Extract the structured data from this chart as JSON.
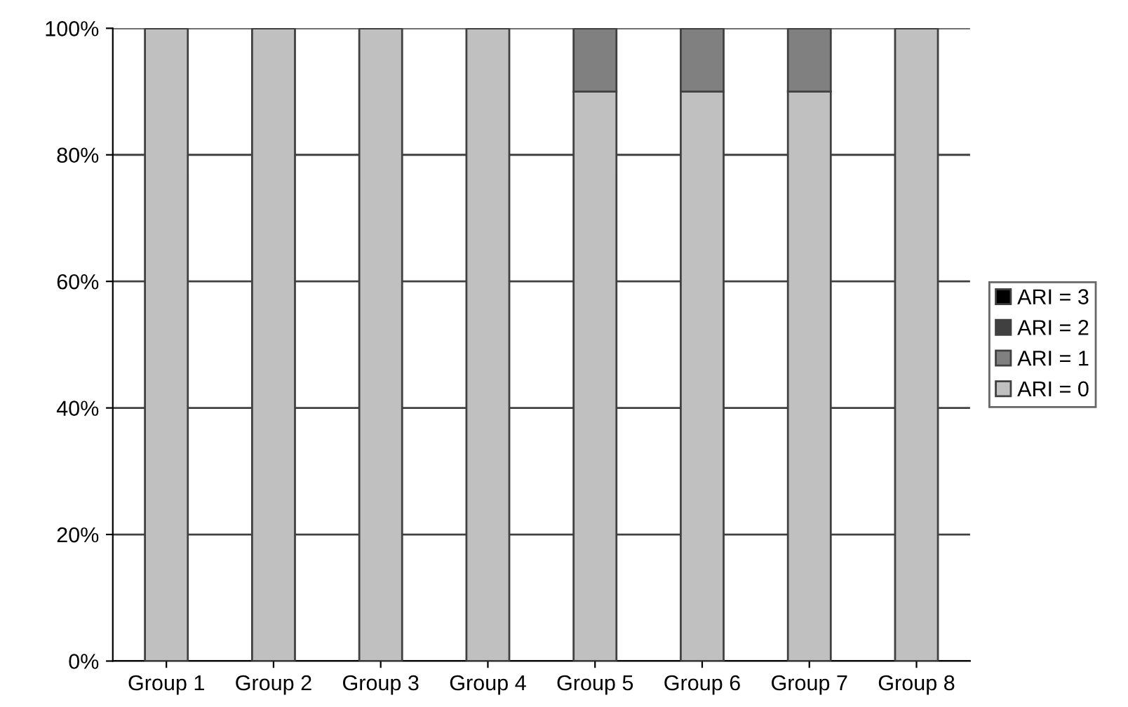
{
  "chart_data": {
    "type": "bar",
    "stacked": true,
    "categories": [
      "Group 1",
      "Group 2",
      "Group 3",
      "Group 4",
      "Group 5",
      "Group 6",
      "Group 7",
      "Group 8"
    ],
    "series": [
      {
        "name": "ARI = 0",
        "color": "#c0c0c0",
        "values": [
          100,
          100,
          100,
          100,
          90,
          90,
          90,
          100
        ]
      },
      {
        "name": "ARI = 1",
        "color": "#808080",
        "values": [
          0,
          0,
          0,
          0,
          10,
          10,
          10,
          0
        ]
      },
      {
        "name": "ARI = 2",
        "color": "#404040",
        "values": [
          0,
          0,
          0,
          0,
          0,
          0,
          0,
          0
        ]
      },
      {
        "name": "ARI = 3",
        "color": "#000000",
        "values": [
          0,
          0,
          0,
          0,
          0,
          0,
          0,
          0
        ]
      }
    ],
    "ylim": [
      0,
      100
    ],
    "yticks": [
      {
        "value": 0,
        "label": "0%"
      },
      {
        "value": 20,
        "label": "20%"
      },
      {
        "value": 40,
        "label": "40%"
      },
      {
        "value": 60,
        "label": "60%"
      },
      {
        "value": 80,
        "label": "80%"
      },
      {
        "value": 100,
        "label": "100%"
      }
    ],
    "grid": "y",
    "legend": "right"
  }
}
